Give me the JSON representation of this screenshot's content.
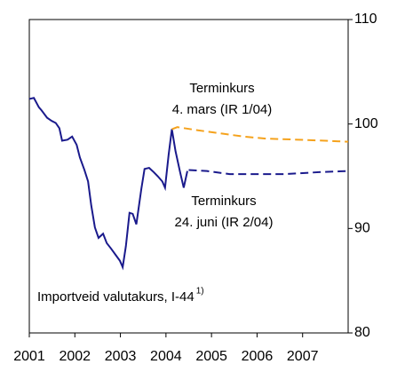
{
  "chart_data": {
    "type": "line",
    "xlim": [
      2001,
      2008
    ],
    "xticks": [
      2001,
      2002,
      2003,
      2004,
      2005,
      2006,
      2007
    ],
    "ylim": [
      80,
      110
    ],
    "yticks": [
      80,
      90,
      100,
      110
    ],
    "series": [
      {
        "color": "#1a1a8c",
        "style": "solid",
        "x": [
          2001.0,
          2001.1,
          2001.21,
          2001.27,
          2001.39,
          2001.49,
          2001.58,
          2001.66,
          2001.72,
          2001.84,
          2001.94,
          2002.04,
          2002.11,
          2002.21,
          2002.29,
          2002.36,
          2002.44,
          2002.52,
          2002.62,
          2002.7,
          2002.79,
          2002.89,
          2002.99,
          2003.05,
          2003.12,
          2003.2,
          2003.27,
          2003.35,
          2003.46,
          2003.53,
          2003.63,
          2003.73,
          2003.82,
          2003.92,
          2003.98,
          2004.06,
          2004.13,
          2004.21,
          2004.31,
          2004.39,
          2004.47
        ],
        "values": [
          102.4,
          102.5,
          101.6,
          101.3,
          100.6,
          100.3,
          100.1,
          99.6,
          98.4,
          98.5,
          98.8,
          98.0,
          96.8,
          95.6,
          94.5,
          92.2,
          90.1,
          89.1,
          89.5,
          88.6,
          88.1,
          87.5,
          86.9,
          86.3,
          88.3,
          91.5,
          91.4,
          90.4,
          93.8,
          95.7,
          95.8,
          95.4,
          95.0,
          94.5,
          93.9,
          97.1,
          99.5,
          97.4,
          95.4,
          93.9,
          95.5
        ]
      },
      {
        "color": "#f5a21c",
        "style": "dashed",
        "x": [
          2004.13,
          2004.25,
          2004.7,
          2005.2,
          2005.7,
          2006.2,
          2006.9,
          2007.5,
          2008.0
        ],
        "values": [
          99.5,
          99.7,
          99.4,
          99.1,
          98.8,
          98.6,
          98.5,
          98.4,
          98.3
        ]
      },
      {
        "color": "#1a1a8c",
        "style": "dashed",
        "x": [
          2004.5,
          2004.9,
          2005.4,
          2006.0,
          2006.6,
          2007.0,
          2007.4,
          2008.0
        ],
        "values": [
          95.6,
          95.5,
          95.2,
          95.2,
          95.2,
          95.3,
          95.4,
          95.5
        ]
      }
    ],
    "annotations": [
      {
        "text": "Terminkurs",
        "color": "#f5a21c"
      },
      {
        "text": "4. mars (IR 1/04)",
        "color": "#f5a21c"
      },
      {
        "text": "Terminkurs",
        "color": "#1a1a8c"
      },
      {
        "text": "24. juni (IR 2/04)",
        "color": "#1a1a8c"
      },
      {
        "text": "Importveid valutakurs, I-44",
        "color": "#1a1a8c"
      },
      {
        "text": "1)",
        "color": "#1a1a8c"
      }
    ]
  }
}
